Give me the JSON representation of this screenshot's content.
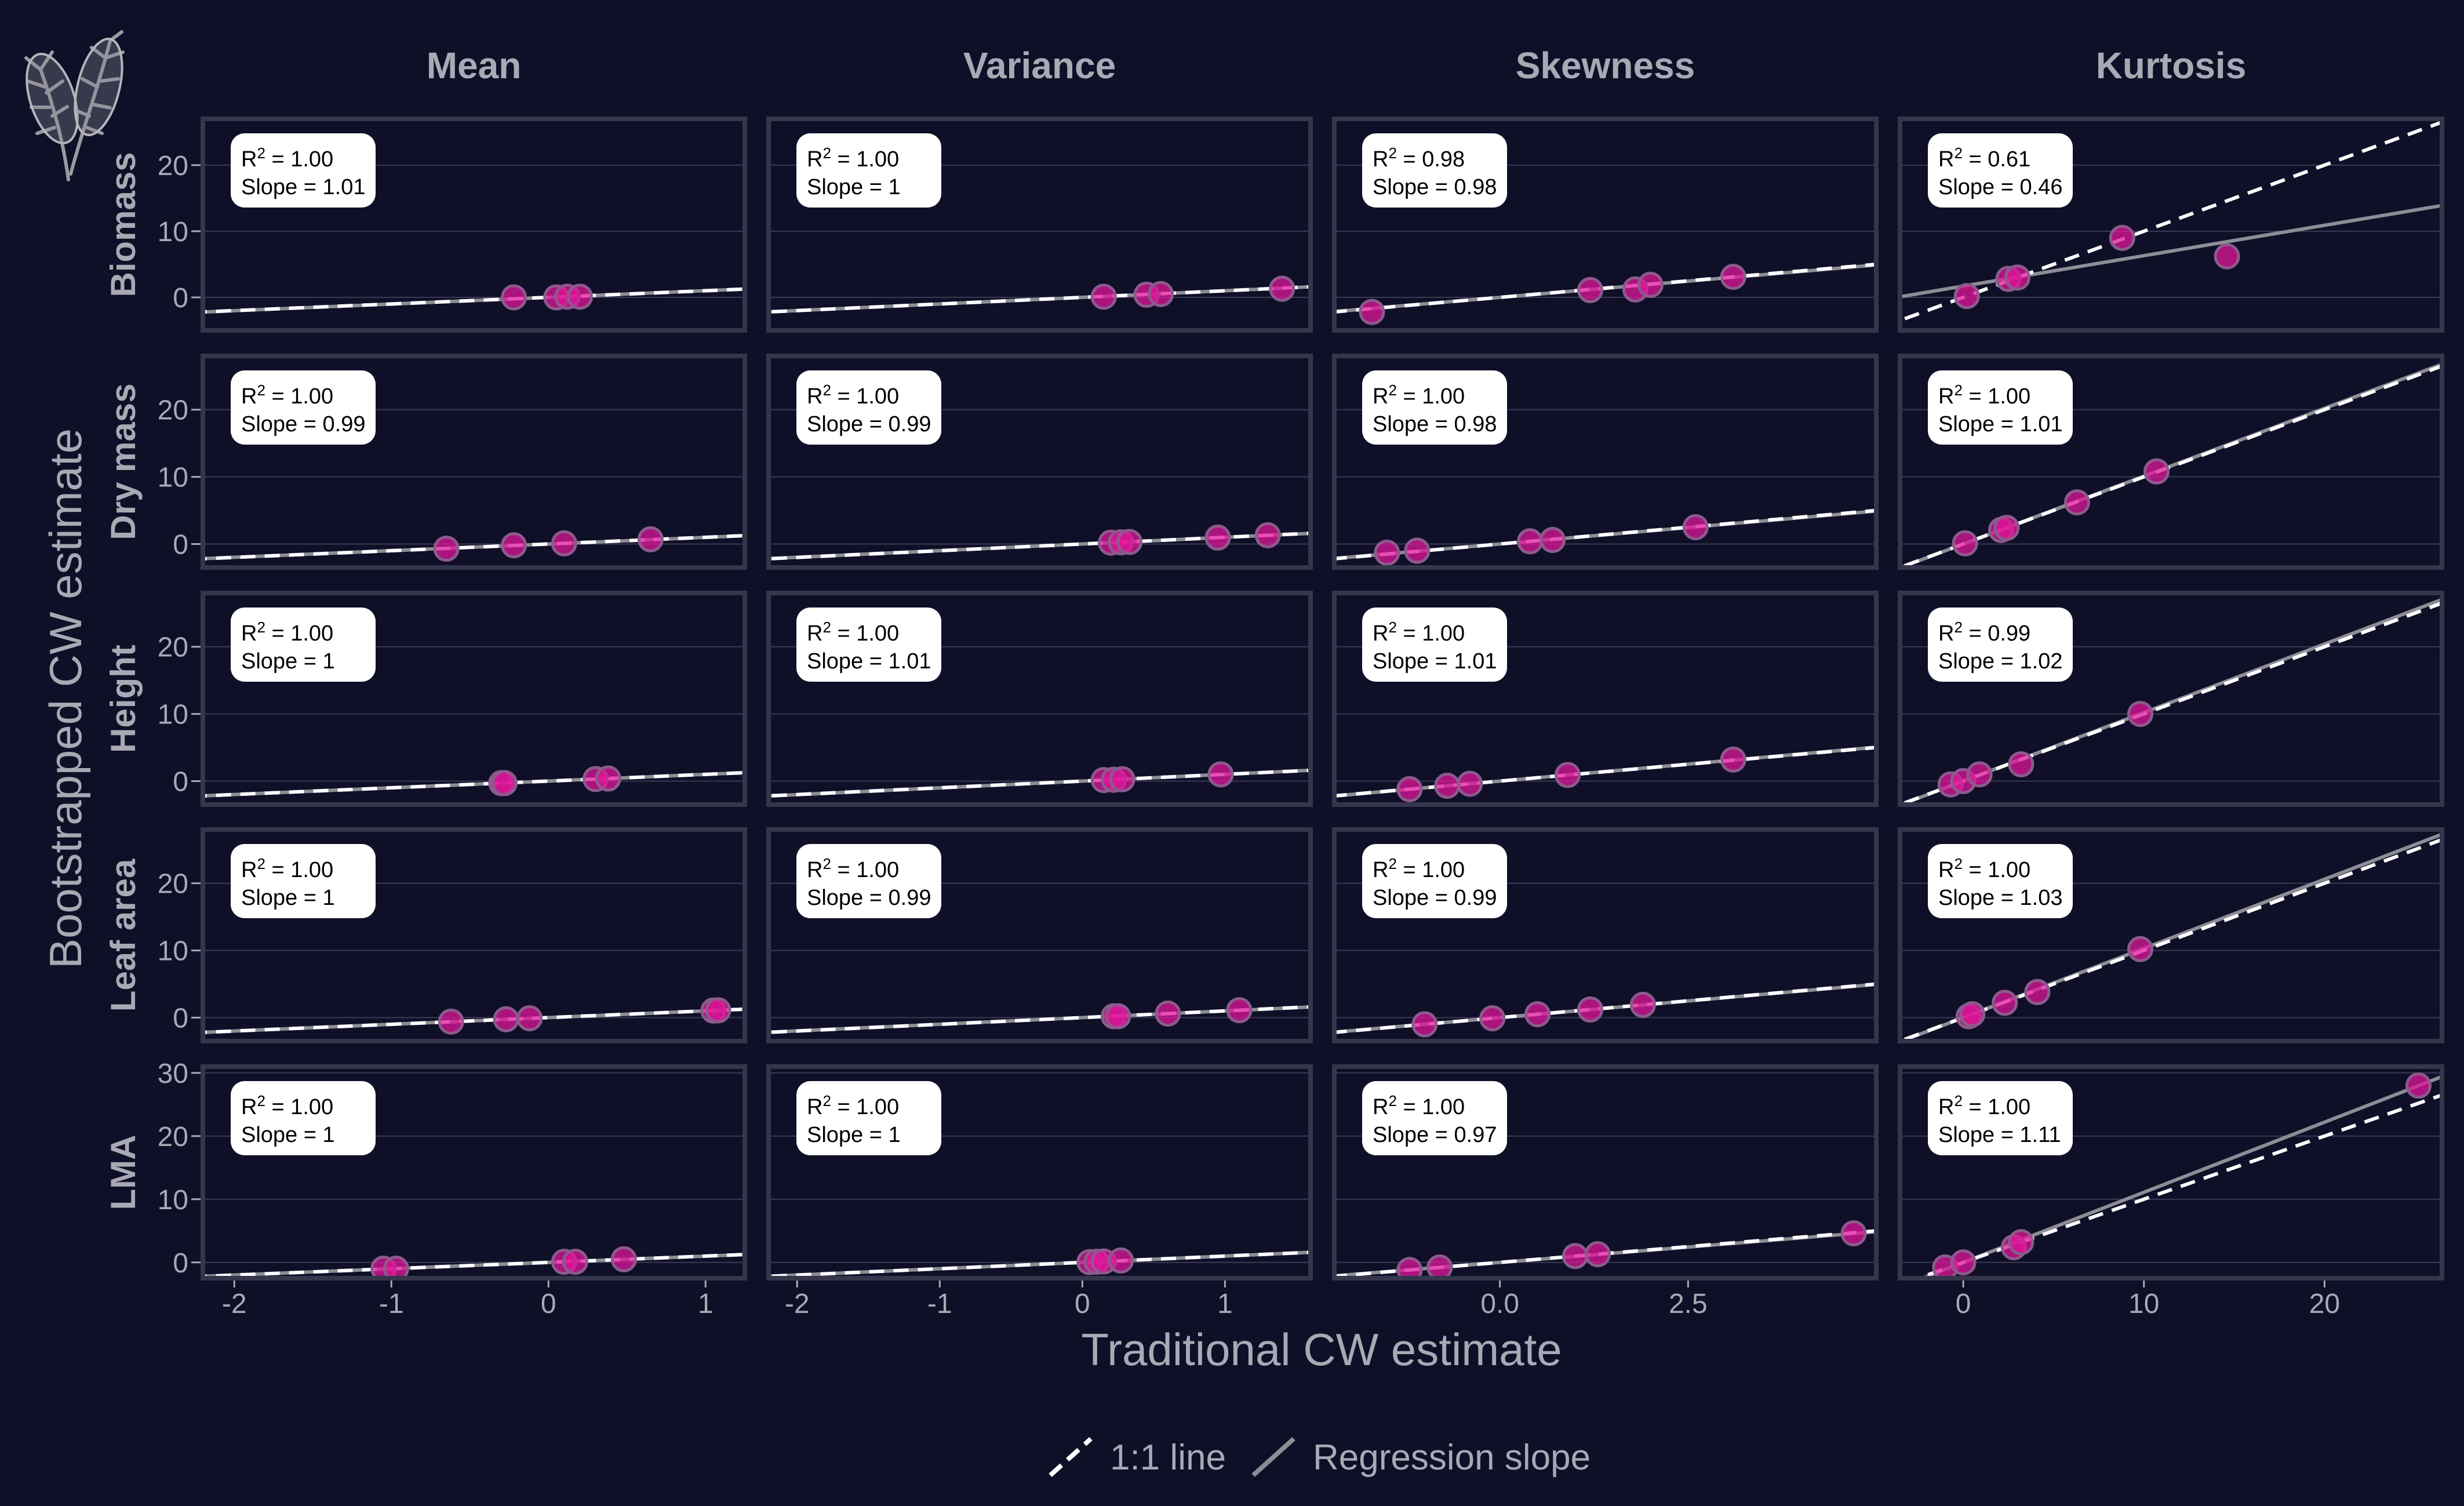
{
  "colors": {
    "background": "#0f0f28",
    "panel_border": "#35354c",
    "gridline": "#3a3a55",
    "text": "#a9a9b4",
    "point_fill": "#e0169a",
    "point_stroke": "#8c5a8c",
    "one_to_one": "#ffffff",
    "regression": "#8d8d96",
    "label_box": "#ffffff",
    "label_text": "#000000"
  },
  "chart_data": {
    "type": "scatter",
    "title": "",
    "xlabel": "Traditional CW estimate",
    "ylabel": "Bootstrapped CW estimate",
    "columns": [
      "Mean",
      "Variance",
      "Skewness",
      "Kurtosis"
    ],
    "rows": [
      "Biomass",
      "Dry mass",
      "Height",
      "Leaf area",
      "LMA"
    ],
    "x_axes": [
      {
        "column": "Mean",
        "xlim": [
          -2.2,
          1.25
        ],
        "ticks": [
          "-2",
          "-1",
          "0",
          "1"
        ],
        "tick_values": [
          -2,
          -1,
          0,
          1
        ]
      },
      {
        "column": "Variance",
        "xlim": [
          -2.2,
          1.6
        ],
        "ticks": [
          "-2",
          "-1",
          "0",
          "1"
        ],
        "tick_values": [
          -2,
          -1,
          0,
          1
        ]
      },
      {
        "column": "Skewness",
        "xlim": [
          -2.2,
          5.0
        ],
        "ticks": [
          "0.0",
          "2.5"
        ],
        "tick_values": [
          0,
          2.5
        ]
      },
      {
        "column": "Kurtosis",
        "xlim": [
          -3.5,
          26.5
        ],
        "ticks": [
          "0",
          "10",
          "20"
        ],
        "tick_values": [
          0,
          10,
          20
        ]
      }
    ],
    "y_axes": [
      {
        "row": "Biomass",
        "ylim": [
          -5,
          27
        ],
        "ticks": [
          "0",
          "10",
          "20"
        ],
        "tick_values": [
          0,
          10,
          20
        ]
      },
      {
        "row": "Dry mass",
        "ylim": [
          -3.5,
          28
        ],
        "ticks": [
          "0",
          "10",
          "20"
        ],
        "tick_values": [
          0,
          10,
          20
        ]
      },
      {
        "row": "Height",
        "ylim": [
          -3.5,
          28
        ],
        "ticks": [
          "0",
          "10",
          "20"
        ],
        "tick_values": [
          0,
          10,
          20
        ]
      },
      {
        "row": "Leaf area",
        "ylim": [
          -3.5,
          28
        ],
        "ticks": [
          "0",
          "10",
          "20"
        ],
        "tick_values": [
          0,
          10,
          20
        ]
      },
      {
        "row": "LMA",
        "ylim": [
          -2.5,
          31
        ],
        "ticks": [
          "0",
          "10",
          "20",
          "30"
        ],
        "tick_values": [
          0,
          10,
          20,
          30
        ]
      }
    ],
    "panels": [
      {
        "row": "Biomass",
        "column": "Mean",
        "r2": "1.00",
        "slope": "1.01",
        "slope_value": 1.01,
        "points": [
          [
            -0.22,
            0
          ],
          [
            0.05,
            0
          ],
          [
            0.12,
            0.1
          ],
          [
            0.2,
            0.1
          ]
        ]
      },
      {
        "row": "Biomass",
        "column": "Variance",
        "r2": "1.00",
        "slope": "1",
        "slope_value": 1.0,
        "points": [
          [
            0.15,
            0.1
          ],
          [
            0.45,
            0.4
          ],
          [
            0.55,
            0.5
          ],
          [
            1.4,
            1.3
          ]
        ]
      },
      {
        "row": "Biomass",
        "column": "Skewness",
        "r2": "0.98",
        "slope": "0.98",
        "slope_value": 0.98,
        "points": [
          [
            -1.7,
            -2.2
          ],
          [
            1.2,
            1.1
          ],
          [
            1.8,
            1.2
          ],
          [
            2.0,
            1.9
          ],
          [
            3.1,
            3.1
          ]
        ]
      },
      {
        "row": "Biomass",
        "column": "Kurtosis",
        "r2": "0.61",
        "slope": "0.46",
        "slope_value": 0.46,
        "intercept": 1.7,
        "points": [
          [
            0.2,
            0.2
          ],
          [
            2.5,
            2.8
          ],
          [
            3.0,
            3.0
          ],
          [
            8.8,
            9.0
          ],
          [
            14.6,
            6.2
          ]
        ]
      },
      {
        "row": "Dry mass",
        "column": "Mean",
        "r2": "1.00",
        "slope": "0.99",
        "slope_value": 0.99,
        "points": [
          [
            -0.65,
            -0.7
          ],
          [
            -0.22,
            -0.2
          ],
          [
            0.1,
            0.1
          ],
          [
            0.65,
            0.7
          ]
        ]
      },
      {
        "row": "Dry mass",
        "column": "Variance",
        "r2": "1.00",
        "slope": "0.99",
        "slope_value": 0.99,
        "points": [
          [
            0.2,
            0.2
          ],
          [
            0.27,
            0.25
          ],
          [
            0.33,
            0.3
          ],
          [
            0.95,
            0.95
          ],
          [
            1.3,
            1.3
          ]
        ]
      },
      {
        "row": "Dry mass",
        "column": "Skewness",
        "r2": "1.00",
        "slope": "0.98",
        "slope_value": 0.98,
        "points": [
          [
            -1.5,
            -1.3
          ],
          [
            -1.1,
            -1.0
          ],
          [
            0.4,
            0.4
          ],
          [
            0.7,
            0.6
          ],
          [
            2.6,
            2.5
          ]
        ]
      },
      {
        "row": "Dry mass",
        "column": "Kurtosis",
        "r2": "1.00",
        "slope": "1.01",
        "slope_value": 1.01,
        "points": [
          [
            0.1,
            0.1
          ],
          [
            2.1,
            2.1
          ],
          [
            2.4,
            2.4
          ],
          [
            6.3,
            6.2
          ],
          [
            10.7,
            10.8
          ]
        ]
      },
      {
        "row": "Height",
        "column": "Mean",
        "r2": "1.00",
        "slope": "1",
        "slope_value": 1.0,
        "points": [
          [
            -0.3,
            -0.3
          ],
          [
            -0.28,
            -0.3
          ],
          [
            0.3,
            0.3
          ],
          [
            0.38,
            0.38
          ]
        ]
      },
      {
        "row": "Height",
        "column": "Variance",
        "r2": "1.00",
        "slope": "1.01",
        "slope_value": 1.01,
        "points": [
          [
            0.15,
            0.15
          ],
          [
            0.22,
            0.2
          ],
          [
            0.28,
            0.28
          ],
          [
            0.97,
            1.0
          ]
        ]
      },
      {
        "row": "Height",
        "column": "Skewness",
        "r2": "1.00",
        "slope": "1.01",
        "slope_value": 1.01,
        "points": [
          [
            -1.2,
            -1.2
          ],
          [
            -0.7,
            -0.7
          ],
          [
            -0.4,
            -0.4
          ],
          [
            0.9,
            0.9
          ],
          [
            3.1,
            3.2
          ]
        ]
      },
      {
        "row": "Height",
        "column": "Kurtosis",
        "r2": "0.99",
        "slope": "1.02",
        "slope_value": 1.02,
        "points": [
          [
            -0.7,
            -0.5
          ],
          [
            0.0,
            0.0
          ],
          [
            0.9,
            1.0
          ],
          [
            3.2,
            2.5
          ],
          [
            9.8,
            10.0
          ]
        ]
      },
      {
        "row": "Leaf area",
        "column": "Mean",
        "r2": "1.00",
        "slope": "1",
        "slope_value": 1.0,
        "points": [
          [
            -0.62,
            -0.6
          ],
          [
            -0.27,
            -0.25
          ],
          [
            -0.12,
            -0.1
          ],
          [
            1.05,
            1.05
          ],
          [
            1.08,
            1.08
          ]
        ]
      },
      {
        "row": "Leaf area",
        "column": "Variance",
        "r2": "1.00",
        "slope": "0.99",
        "slope_value": 0.99,
        "points": [
          [
            0.22,
            0.2
          ],
          [
            0.25,
            0.2
          ],
          [
            0.6,
            0.6
          ],
          [
            1.1,
            1.1
          ]
        ]
      },
      {
        "row": "Leaf area",
        "column": "Skewness",
        "r2": "1.00",
        "slope": "0.99",
        "slope_value": 0.99,
        "points": [
          [
            -1.0,
            -1.0
          ],
          [
            -0.1,
            -0.1
          ],
          [
            0.5,
            0.5
          ],
          [
            1.2,
            1.2
          ],
          [
            1.9,
            1.9
          ]
        ]
      },
      {
        "row": "Leaf area",
        "column": "Kurtosis",
        "r2": "1.00",
        "slope": "1.03",
        "slope_value": 1.03,
        "points": [
          [
            0.3,
            0.2
          ],
          [
            0.5,
            0.5
          ],
          [
            2.3,
            2.2
          ],
          [
            4.1,
            3.8
          ],
          [
            9.8,
            10.2
          ]
        ]
      },
      {
        "row": "LMA",
        "column": "Mean",
        "r2": "1.00",
        "slope": "1",
        "slope_value": 1.0,
        "points": [
          [
            -1.05,
            -1.0
          ],
          [
            -0.97,
            -1.0
          ],
          [
            0.1,
            0.1
          ],
          [
            0.17,
            0.1
          ],
          [
            0.48,
            0.5
          ]
        ]
      },
      {
        "row": "LMA",
        "column": "Variance",
        "r2": "1.00",
        "slope": "1",
        "slope_value": 1.0,
        "points": [
          [
            0.05,
            0.05
          ],
          [
            0.1,
            0.1
          ],
          [
            0.15,
            0.15
          ],
          [
            0.27,
            0.3
          ]
        ]
      },
      {
        "row": "LMA",
        "column": "Skewness",
        "r2": "1.00",
        "slope": "0.97",
        "slope_value": 0.97,
        "points": [
          [
            -1.2,
            -1.2
          ],
          [
            -0.8,
            -0.8
          ],
          [
            1.0,
            1.0
          ],
          [
            1.3,
            1.3
          ],
          [
            4.7,
            4.6
          ]
        ]
      },
      {
        "row": "LMA",
        "column": "Kurtosis",
        "r2": "1.00",
        "slope": "1.11",
        "slope_value": 1.11,
        "points": [
          [
            -1.0,
            -0.8
          ],
          [
            0.0,
            0.0
          ],
          [
            2.8,
            2.4
          ],
          [
            3.2,
            3.2
          ],
          [
            25.2,
            28.0
          ]
        ]
      }
    ],
    "legend": {
      "position": "bottom",
      "items": [
        {
          "label": "1:1 line",
          "style": "dashed",
          "color": "#ffffff"
        },
        {
          "label": "Regression slope",
          "style": "solid",
          "color": "#8d8d96"
        }
      ]
    }
  },
  "labels": {
    "r2_prefix": "R",
    "r2_sup": "2",
    "r2_eq": " = ",
    "slope_prefix": "Slope = "
  }
}
